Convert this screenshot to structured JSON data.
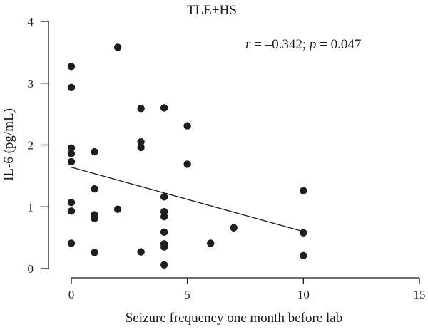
{
  "chart_data": {
    "type": "scatter",
    "title": "TLE+HS",
    "xlabel": "Seizure frequency one month before lab",
    "ylabel": "IL-6 (pg/mL)",
    "xlim": [
      0,
      15
    ],
    "ylim": [
      0,
      4
    ],
    "xticks": [
      0,
      5,
      10,
      15
    ],
    "yticks": [
      0,
      1,
      2,
      3,
      4
    ],
    "annotation": {
      "r_label": "r",
      "r_value": " = –0.342; ",
      "p_label": "p",
      "p_value": " = 0.047"
    },
    "points": [
      {
        "x": 0,
        "y": 3.27
      },
      {
        "x": 0,
        "y": 2.93
      },
      {
        "x": 0,
        "y": 1.95
      },
      {
        "x": 0,
        "y": 1.86
      },
      {
        "x": 0,
        "y": 1.73
      },
      {
        "x": 0,
        "y": 1.07
      },
      {
        "x": 0,
        "y": 0.93
      },
      {
        "x": 0,
        "y": 0.41
      },
      {
        "x": 1,
        "y": 1.89
      },
      {
        "x": 1,
        "y": 1.29
      },
      {
        "x": 1,
        "y": 0.87
      },
      {
        "x": 1,
        "y": 0.81
      },
      {
        "x": 1,
        "y": 0.26
      },
      {
        "x": 2,
        "y": 3.58
      },
      {
        "x": 2,
        "y": 0.96
      },
      {
        "x": 3,
        "y": 2.59
      },
      {
        "x": 3,
        "y": 2.05
      },
      {
        "x": 3,
        "y": 1.96
      },
      {
        "x": 3,
        "y": 0.27
      },
      {
        "x": 4,
        "y": 2.6
      },
      {
        "x": 4,
        "y": 1.16
      },
      {
        "x": 4,
        "y": 0.92
      },
      {
        "x": 4,
        "y": 0.84
      },
      {
        "x": 4,
        "y": 0.59
      },
      {
        "x": 4,
        "y": 0.4
      },
      {
        "x": 4,
        "y": 0.35
      },
      {
        "x": 4,
        "y": 0.06
      },
      {
        "x": 5,
        "y": 2.31
      },
      {
        "x": 5,
        "y": 1.69
      },
      {
        "x": 6,
        "y": 0.41
      },
      {
        "x": 7,
        "y": 0.66
      },
      {
        "x": 10,
        "y": 1.26
      },
      {
        "x": 10,
        "y": 0.58
      },
      {
        "x": 10,
        "y": 0.21
      }
    ],
    "regression": {
      "x": [
        0,
        10
      ],
      "y": [
        1.64,
        0.6
      ]
    },
    "grid": false,
    "colors": {
      "points": "#1e1e1e",
      "axes": "#1a1a1a"
    }
  }
}
